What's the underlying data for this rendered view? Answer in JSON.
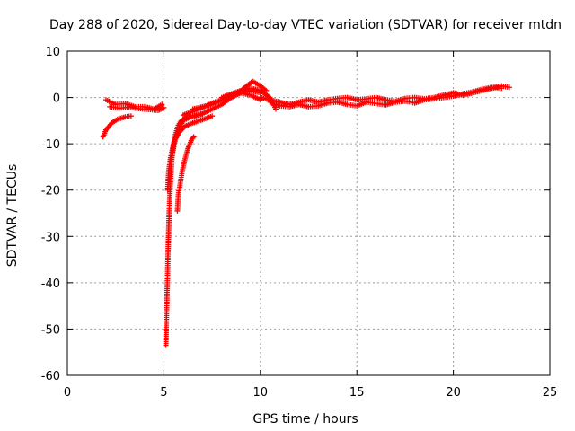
{
  "chart_data": {
    "type": "scatter",
    "title": "Day 288 of 2020, Sidereal Day-to-day VTEC variation (SDTVAR) for receiver mtdn",
    "xlabel": "GPS time / hours",
    "ylabel": "SDTVAR / TECUs",
    "xlim": [
      0,
      25
    ],
    "ylim": [
      -60,
      10
    ],
    "xticks": [
      0,
      5,
      10,
      15,
      20,
      25
    ],
    "yticks": [
      -60,
      -50,
      -40,
      -30,
      -20,
      -10,
      0,
      10
    ],
    "grid": true,
    "marker": "plus",
    "series": [
      {
        "name": "SDTVAR",
        "color": "#ff0000",
        "tracks": [
          {
            "x": [
              1.85,
              2.0,
              2.3,
              2.6,
              3.0,
              3.3
            ],
            "y": [
              -8.5,
              -7.0,
              -5.5,
              -4.7,
              -4.2,
              -4.0
            ]
          },
          {
            "x": [
              2.0,
              2.5,
              3.0,
              3.5,
              4.0,
              4.5,
              4.9
            ],
            "y": [
              -0.5,
              -1.5,
              -1.3,
              -2.0,
              -2.0,
              -2.5,
              -1.5
            ]
          },
          {
            "x": [
              2.2,
              2.7,
              3.2,
              3.7,
              4.2,
              4.7,
              5.0
            ],
            "y": [
              -2.0,
              -2.3,
              -2.1,
              -2.4,
              -2.6,
              -2.8,
              -2.2
            ]
          },
          {
            "x": [
              5.1,
              5.12,
              5.15,
              5.18,
              5.22,
              5.26,
              5.3,
              5.36,
              5.42,
              5.5,
              5.6,
              5.75,
              5.9,
              6.2,
              6.6,
              7.0
            ],
            "y": [
              -53.5,
              -50.0,
              -45.0,
              -40.0,
              -33.0,
              -27.0,
              -22.0,
              -17.0,
              -13.0,
              -10.0,
              -8.0,
              -6.0,
              -5.0,
              -4.3,
              -4.0,
              -3.6
            ]
          },
          {
            "x": [
              5.2,
              5.25,
              5.35,
              5.45,
              5.6,
              5.8,
              6.1,
              6.5,
              7.0,
              7.5
            ],
            "y": [
              -20.0,
              -16.0,
              -13.0,
              -11.0,
              -9.0,
              -7.5,
              -6.2,
              -5.5,
              -4.8,
              -4.0
            ]
          },
          {
            "x": [
              5.7,
              5.75,
              5.85,
              5.95,
              6.05,
              6.15,
              6.25,
              6.35,
              6.45,
              6.55
            ],
            "y": [
              -24.5,
              -21.0,
              -18.5,
              -16.0,
              -14.0,
              -12.5,
              -11.0,
              -10.0,
              -9.0,
              -8.5
            ]
          },
          {
            "x": [
              5.4,
              5.6,
              5.8,
              6.0,
              6.5,
              7.0,
              7.5,
              8.0,
              8.5,
              9.0,
              9.5,
              10.0
            ],
            "y": [
              -13.0,
              -9.0,
              -6.5,
              -5.0,
              -4.0,
              -3.5,
              -2.5,
              -1.5,
              0.0,
              1.0,
              1.5,
              1.0
            ]
          },
          {
            "x": [
              6.5,
              7.0,
              7.5,
              8.0,
              8.5,
              9.0,
              9.3,
              9.6,
              10.0,
              10.3
            ],
            "y": [
              -2.5,
              -2.0,
              -1.5,
              -0.5,
              0.5,
              1.5,
              2.5,
              3.5,
              2.5,
              1.5
            ]
          },
          {
            "x": [
              6.0,
              6.5,
              7.0,
              7.5,
              8.0,
              8.5,
              9.0,
              9.5,
              10.0
            ],
            "y": [
              -3.8,
              -3.0,
              -2.2,
              -1.2,
              -0.5,
              0.5,
              1.0,
              0.5,
              -0.5
            ]
          },
          {
            "x": [
              8.0,
              8.5,
              9.0,
              9.5,
              10.0,
              10.5,
              10.8
            ],
            "y": [
              0.0,
              0.8,
              1.5,
              2.0,
              1.5,
              0.0,
              -2.5
            ]
          },
          {
            "x": [
              10.0,
              10.5,
              11.0,
              11.5,
              12.0,
              12.5,
              13.0,
              13.5,
              14.0,
              14.5,
              15.0,
              15.5,
              16.0,
              16.5,
              17.0,
              17.5,
              18.0,
              18.5,
              19.0,
              19.5,
              20.0,
              20.5,
              21.0,
              21.5,
              22.0,
              22.5,
              22.9
            ],
            "y": [
              0.0,
              -0.5,
              -1.0,
              -1.5,
              -1.0,
              -0.5,
              -1.0,
              -0.5,
              -0.2,
              0.0,
              -0.5,
              -0.3,
              0.0,
              -0.5,
              -0.8,
              -0.2,
              0.0,
              -0.3,
              0.0,
              0.5,
              1.0,
              0.5,
              1.0,
              1.5,
              2.0,
              2.5,
              2.2
            ]
          },
          {
            "x": [
              10.5,
              11.0,
              11.5,
              12.0,
              12.5,
              13.0,
              13.5,
              14.0,
              14.5,
              15.0,
              15.5,
              16.0,
              16.5,
              17.0,
              17.5,
              18.0,
              18.5,
              19.0,
              19.5,
              20.0,
              20.5,
              21.0,
              21.5,
              22.0,
              22.5
            ],
            "y": [
              -1.0,
              -1.8,
              -2.0,
              -1.5,
              -2.0,
              -1.8,
              -1.2,
              -1.0,
              -1.5,
              -1.8,
              -1.0,
              -1.3,
              -1.6,
              -1.0,
              -0.8,
              -1.2,
              -0.5,
              -0.3,
              0.0,
              0.3,
              0.8,
              1.2,
              1.8,
              2.2,
              2.0
            ]
          }
        ]
      }
    ]
  }
}
